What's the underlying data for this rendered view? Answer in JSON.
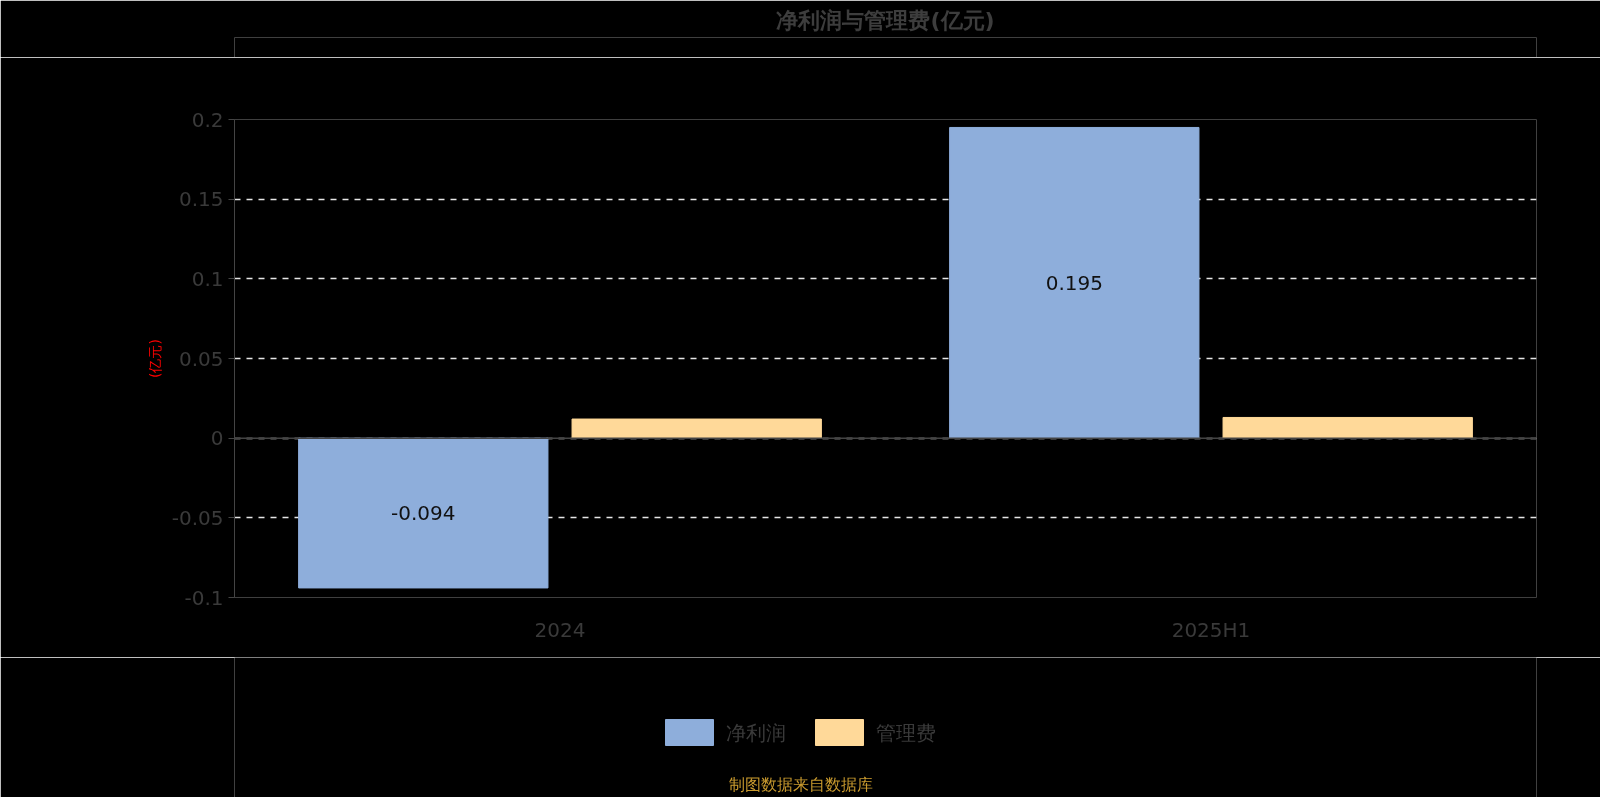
{
  "chart_data": {
    "type": "bar",
    "title": "净利润与管理费(亿元)",
    "ylabel": "(亿元)",
    "categories": [
      "2024",
      "2025H1"
    ],
    "series": [
      {
        "name": "净利润",
        "color": "#8eaedb",
        "values": [
          -0.094,
          0.195
        ],
        "value_labels": [
          "-0.094",
          "0.195"
        ]
      },
      {
        "name": "管理费",
        "color": "#ffd999",
        "values": [
          0.012,
          0.013
        ]
      }
    ],
    "ylim": [
      -0.1,
      0.2
    ],
    "yticks": [
      -0.1,
      -0.05,
      0,
      0.05,
      0.1,
      0.15,
      0.2
    ],
    "grid": "y",
    "legend": "bottom",
    "annotations": [
      "制图数据来自数据库"
    ]
  }
}
